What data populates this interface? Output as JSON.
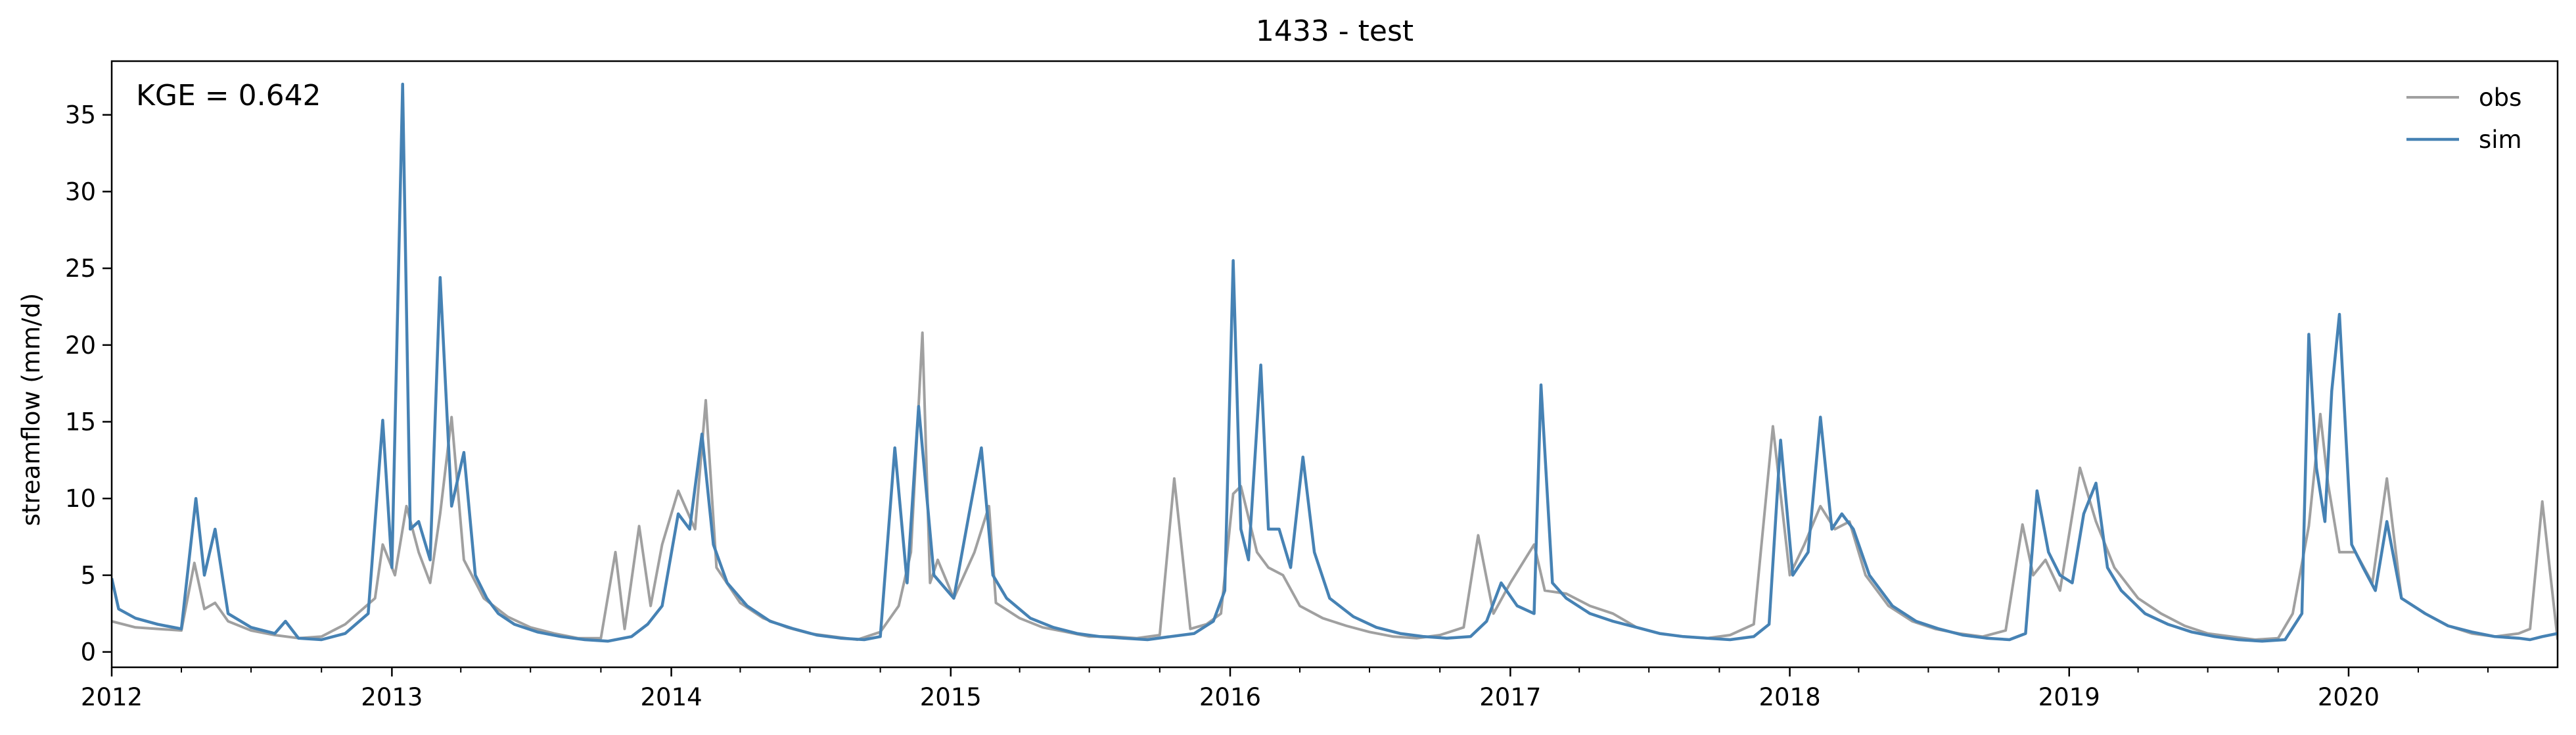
{
  "chart_data": {
    "type": "line",
    "title": "1433 - test",
    "xlabel": "",
    "ylabel": "streamflow (mm/d)",
    "annotation": "KGE = 0.642",
    "legend_position": "top-right",
    "grid": false,
    "xlim": [
      "2012-01-01",
      "2020-09-30"
    ],
    "ylim": [
      -1,
      38.5
    ],
    "x_ticks": [
      "2012",
      "2013",
      "2014",
      "2015",
      "2016",
      "2017",
      "2018",
      "2019",
      "2020"
    ],
    "y_ticks": [
      0,
      5,
      10,
      15,
      20,
      25,
      30,
      35
    ],
    "series": [
      {
        "name": "obs",
        "color": "#a0a0a0",
        "x": [
          "2012-01-01",
          "2012-02-01",
          "2012-03-01",
          "2012-04-01",
          "2012-04-18",
          "2012-05-01",
          "2012-05-15",
          "2012-06-01",
          "2012-07-01",
          "2012-08-01",
          "2012-09-01",
          "2012-10-01",
          "2012-11-01",
          "2012-12-10",
          "2012-12-20",
          "2013-01-05",
          "2013-01-20",
          "2013-02-05",
          "2013-02-20",
          "2013-03-05",
          "2013-03-20",
          "2013-04-05",
          "2013-05-01",
          "2013-06-01",
          "2013-07-01",
          "2013-08-01",
          "2013-09-01",
          "2013-10-01",
          "2013-10-20",
          "2013-11-01",
          "2013-11-20",
          "2013-12-05",
          "2013-12-20",
          "2014-01-10",
          "2014-02-01",
          "2014-02-15",
          "2014-03-01",
          "2014-04-01",
          "2014-05-01",
          "2014-06-01",
          "2014-07-01",
          "2014-08-01",
          "2014-09-01",
          "2014-10-01",
          "2014-10-25",
          "2014-11-10",
          "2014-11-25",
          "2014-12-05",
          "2014-12-15",
          "2015-01-05",
          "2015-02-01",
          "2015-02-20",
          "2015-03-01",
          "2015-04-01",
          "2015-05-01",
          "2015-06-01",
          "2015-07-01",
          "2015-08-01",
          "2015-09-01",
          "2015-10-01",
          "2015-10-20",
          "2015-11-10",
          "2015-12-01",
          "2015-12-20",
          "2016-01-05",
          "2016-01-15",
          "2016-02-05",
          "2016-02-20",
          "2016-03-10",
          "2016-04-01",
          "2016-05-01",
          "2016-06-01",
          "2016-07-01",
          "2016-08-01",
          "2016-09-01",
          "2016-10-01",
          "2016-11-01",
          "2016-11-20",
          "2016-12-10",
          "2017-01-01",
          "2017-02-01",
          "2017-02-15",
          "2017-03-15",
          "2017-04-15",
          "2017-05-15",
          "2017-06-15",
          "2017-07-15",
          "2017-08-15",
          "2017-09-15",
          "2017-10-15",
          "2017-11-15",
          "2017-12-10",
          "2018-01-01",
          "2018-01-20",
          "2018-02-10",
          "2018-03-01",
          "2018-03-20",
          "2018-04-10",
          "2018-05-10",
          "2018-06-10",
          "2018-07-10",
          "2018-08-10",
          "2018-09-10",
          "2018-10-10",
          "2018-11-01",
          "2018-11-15",
          "2018-12-01",
          "2018-12-20",
          "2019-01-15",
          "2019-02-05",
          "2019-03-01",
          "2019-04-01",
          "2019-05-01",
          "2019-06-01",
          "2019-07-01",
          "2019-08-01",
          "2019-09-01",
          "2019-10-01",
          "2019-10-20",
          "2019-11-10",
          "2019-11-25",
          "2019-12-05",
          "2019-12-20",
          "2020-01-10",
          "2020-02-01",
          "2020-02-20",
          "2020-03-10",
          "2020-04-10",
          "2020-05-10",
          "2020-06-10",
          "2020-07-10",
          "2020-08-10",
          "2020-08-25",
          "2020-09-10",
          "2020-09-30"
        ],
        "y": [
          2.0,
          1.6,
          1.5,
          1.4,
          5.8,
          2.8,
          3.2,
          2.0,
          1.4,
          1.1,
          0.9,
          1.0,
          1.8,
          3.5,
          7.0,
          5.0,
          9.5,
          6.5,
          4.5,
          9.0,
          15.3,
          6.0,
          3.5,
          2.3,
          1.6,
          1.2,
          0.9,
          0.9,
          6.5,
          1.5,
          8.2,
          3.0,
          7.0,
          10.5,
          8.0,
          16.4,
          5.5,
          3.2,
          2.2,
          1.6,
          1.2,
          1.0,
          0.8,
          1.3,
          3.0,
          6.5,
          20.8,
          4.5,
          6.0,
          3.5,
          6.5,
          9.5,
          3.2,
          2.2,
          1.6,
          1.3,
          1.0,
          1.0,
          0.9,
          1.1,
          11.3,
          1.5,
          1.8,
          2.5,
          10.3,
          10.8,
          6.5,
          5.5,
          5.0,
          3.0,
          2.2,
          1.7,
          1.3,
          1.0,
          0.9,
          1.1,
          1.6,
          7.6,
          2.5,
          4.5,
          7.0,
          4.0,
          3.8,
          3.0,
          2.5,
          1.6,
          1.2,
          1.0,
          0.9,
          1.1,
          1.8,
          14.7,
          5.0,
          7.0,
          9.5,
          8.0,
          8.5,
          5.0,
          3.0,
          2.0,
          1.5,
          1.2,
          1.0,
          1.4,
          8.3,
          5.0,
          6.0,
          4.0,
          12.0,
          8.5,
          5.5,
          3.5,
          2.5,
          1.7,
          1.2,
          1.0,
          0.8,
          0.9,
          2.5,
          8.2,
          15.5,
          11.0,
          6.5,
          6.5,
          4.5,
          11.3,
          3.5,
          2.5,
          1.7,
          1.2,
          1.0,
          1.2,
          1.5,
          9.8,
          0.8
        ]
      },
      {
        "name": "sim",
        "color": "#4682b4",
        "x": [
          "2012-01-01",
          "2012-01-10",
          "2012-02-01",
          "2012-03-01",
          "2012-04-01",
          "2012-04-20",
          "2012-05-01",
          "2012-05-15",
          "2012-06-01",
          "2012-07-01",
          "2012-08-01",
          "2012-08-15",
          "2012-09-01",
          "2012-10-01",
          "2012-11-01",
          "2012-12-01",
          "2012-12-20",
          "2013-01-01",
          "2013-01-15",
          "2013-01-25",
          "2013-02-05",
          "2013-02-20",
          "2013-03-05",
          "2013-03-20",
          "2013-04-05",
          "2013-04-20",
          "2013-05-05",
          "2013-05-20",
          "2013-06-10",
          "2013-07-10",
          "2013-08-10",
          "2013-09-10",
          "2013-10-10",
          "2013-11-10",
          "2013-12-01",
          "2013-12-20",
          "2014-01-10",
          "2014-01-25",
          "2014-02-10",
          "2014-02-25",
          "2014-03-15",
          "2014-04-10",
          "2014-05-10",
          "2014-06-10",
          "2014-07-10",
          "2014-08-10",
          "2014-09-10",
          "2014-10-01",
          "2014-10-20",
          "2014-11-05",
          "2014-11-20",
          "2014-12-10",
          "2015-01-05",
          "2015-01-25",
          "2015-02-10",
          "2015-02-25",
          "2015-03-15",
          "2015-04-15",
          "2015-05-15",
          "2015-06-15",
          "2015-07-15",
          "2015-08-15",
          "2015-09-15",
          "2015-10-15",
          "2015-11-15",
          "2015-12-10",
          "2015-12-25",
          "2016-01-05",
          "2016-01-15",
          "2016-01-25",
          "2016-02-10",
          "2016-02-20",
          "2016-03-05",
          "2016-03-20",
          "2016-04-05",
          "2016-04-20",
          "2016-05-10",
          "2016-06-10",
          "2016-07-10",
          "2016-08-10",
          "2016-09-10",
          "2016-10-10",
          "2016-11-10",
          "2016-12-01",
          "2016-12-20",
          "2017-01-10",
          "2017-02-01",
          "2017-02-10",
          "2017-02-25",
          "2017-03-15",
          "2017-04-15",
          "2017-05-15",
          "2017-06-15",
          "2017-07-15",
          "2017-08-15",
          "2017-09-15",
          "2017-10-15",
          "2017-11-15",
          "2017-12-05",
          "2017-12-20",
          "2018-01-05",
          "2018-01-25",
          "2018-02-10",
          "2018-02-25",
          "2018-03-10",
          "2018-03-25",
          "2018-04-15",
          "2018-05-15",
          "2018-06-15",
          "2018-07-15",
          "2018-08-15",
          "2018-09-15",
          "2018-10-15",
          "2018-11-05",
          "2018-11-20",
          "2018-12-05",
          "2018-12-20",
          "2019-01-05",
          "2019-01-20",
          "2019-02-05",
          "2019-02-20",
          "2019-03-10",
          "2019-04-10",
          "2019-05-10",
          "2019-06-10",
          "2019-07-10",
          "2019-08-10",
          "2019-09-10",
          "2019-10-10",
          "2019-11-01",
          "2019-11-10",
          "2019-11-20",
          "2019-12-01",
          "2019-12-10",
          "2019-12-20",
          "2020-01-05",
          "2020-01-20",
          "2020-02-05",
          "2020-02-20",
          "2020-03-10",
          "2020-04-10",
          "2020-05-10",
          "2020-06-10",
          "2020-07-10",
          "2020-08-10",
          "2020-08-25",
          "2020-09-10",
          "2020-09-30"
        ],
        "y": [
          4.8,
          2.8,
          2.2,
          1.8,
          1.5,
          10.0,
          5.0,
          8.0,
          2.5,
          1.6,
          1.2,
          2.0,
          0.9,
          0.8,
          1.2,
          2.5,
          15.1,
          5.5,
          37.0,
          8.0,
          8.5,
          6.0,
          24.4,
          9.5,
          13.0,
          5.0,
          3.5,
          2.5,
          1.8,
          1.3,
          1.0,
          0.8,
          0.7,
          1.0,
          1.8,
          3.0,
          9.0,
          8.0,
          14.2,
          7.0,
          4.5,
          3.0,
          2.0,
          1.5,
          1.1,
          0.9,
          0.8,
          1.0,
          13.3,
          4.5,
          16.0,
          5.0,
          3.5,
          9.0,
          13.3,
          5.0,
          3.5,
          2.2,
          1.6,
          1.2,
          1.0,
          0.9,
          0.8,
          1.0,
          1.2,
          2.0,
          4.0,
          25.5,
          8.0,
          6.0,
          18.7,
          8.0,
          8.0,
          5.5,
          12.7,
          6.5,
          3.5,
          2.3,
          1.6,
          1.2,
          1.0,
          0.9,
          1.0,
          2.0,
          4.5,
          3.0,
          2.5,
          17.4,
          4.5,
          3.5,
          2.5,
          2.0,
          1.6,
          1.2,
          1.0,
          0.9,
          0.8,
          1.0,
          1.8,
          13.8,
          5.0,
          6.5,
          15.3,
          8.0,
          9.0,
          8.0,
          5.0,
          3.0,
          2.0,
          1.5,
          1.1,
          0.9,
          0.8,
          1.2,
          10.5,
          6.5,
          5.0,
          4.5,
          9.0,
          11.0,
          5.5,
          4.0,
          2.5,
          1.8,
          1.3,
          1.0,
          0.8,
          0.7,
          0.8,
          2.5,
          20.7,
          12.0,
          8.5,
          17.0,
          22.0,
          7.0,
          5.5,
          4.0,
          8.5,
          3.5,
          2.5,
          1.7,
          1.3,
          1.0,
          0.9,
          0.8,
          1.0,
          1.2
        ]
      }
    ]
  }
}
